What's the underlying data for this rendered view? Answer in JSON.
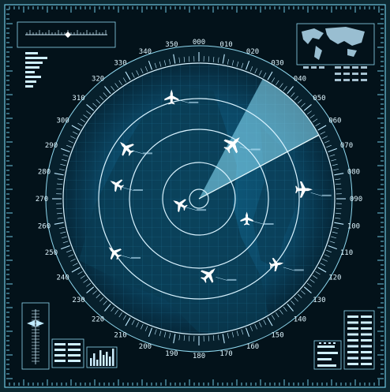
{
  "colors": {
    "background": "#071319",
    "frame": "#0f2f3a",
    "radar_dark": "#062a3c",
    "radar_light": "#1a8fc0",
    "ring": "#d9f3ff",
    "sweep": "#9fe9ff",
    "aircraft": "#ffffff",
    "land": "#0a3f56"
  },
  "bearings": [
    "000",
    "010",
    "020",
    "030",
    "040",
    "050",
    "060",
    "070",
    "080",
    "090",
    "100",
    "110",
    "120",
    "130",
    "140",
    "150",
    "160",
    "170",
    "180",
    "190",
    "200",
    "210",
    "220",
    "230",
    "240",
    "250",
    "260",
    "270",
    "280",
    "290",
    "300",
    "310",
    "320",
    "330",
    "340",
    "350"
  ],
  "sweep": {
    "from_deg": 28,
    "to_deg": 62
  },
  "aircraft": [
    {
      "id": "a1",
      "bearing": 345,
      "range": 0.78,
      "heading": 0,
      "size": 1.0
    },
    {
      "id": "a2",
      "bearing": 305,
      "range": 0.66,
      "heading": 315,
      "size": 1.1
    },
    {
      "id": "a3",
      "bearing": 32,
      "range": 0.48,
      "heading": 45,
      "size": 1.25
    },
    {
      "id": "a4",
      "bearing": 280,
      "range": 0.62,
      "heading": 300,
      "size": 0.95
    },
    {
      "id": "a5",
      "bearing": 85,
      "range": 0.78,
      "heading": 90,
      "size": 1.15
    },
    {
      "id": "a6",
      "bearing": 255,
      "range": 0.15,
      "heading": 300,
      "size": 1.0
    },
    {
      "id": "a7",
      "bearing": 112,
      "range": 0.38,
      "heading": 0,
      "size": 0.9
    },
    {
      "id": "a8",
      "bearing": 238,
      "range": 0.74,
      "heading": 315,
      "size": 1.0
    },
    {
      "id": "a9",
      "bearing": 172,
      "range": 0.56,
      "heading": 45,
      "size": 1.15
    },
    {
      "id": "a10",
      "bearing": 130,
      "range": 0.75,
      "heading": 80,
      "size": 0.95
    }
  ],
  "panels": {
    "top_left": "ruler-indicator",
    "top_right": "world-map",
    "bottom_left": "scale-indicator",
    "bottom_right": "status-bars"
  },
  "icons": [
    "airplane-icon",
    "world-map-icon",
    "scale-icon",
    "bar-chart-icon"
  ]
}
